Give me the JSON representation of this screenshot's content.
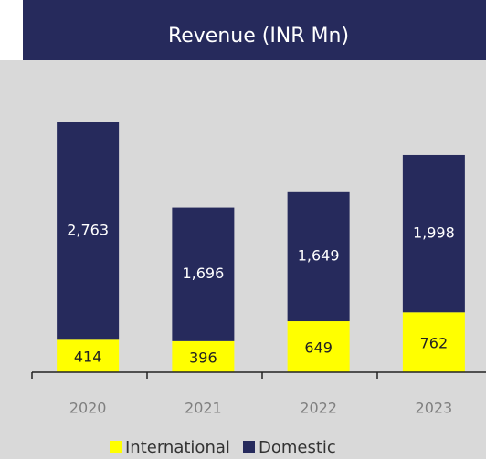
{
  "chart_data": {
    "type": "stacked-bar",
    "title": "Revenue (INR Mn)",
    "categories": [
      "2020",
      "2021",
      "2022",
      "2023"
    ],
    "series": [
      {
        "name": "International",
        "color": "#ffff00",
        "values": [
          414,
          396,
          649,
          762
        ],
        "value_labels": [
          "414",
          "396",
          "649",
          "762"
        ]
      },
      {
        "name": "Domestic",
        "color": "#262a5c",
        "values": [
          2763,
          1696,
          1649,
          1998
        ],
        "value_labels": [
          "2,763",
          "1,696",
          "1,649",
          "1,998"
        ]
      }
    ],
    "legend": "bottom"
  }
}
